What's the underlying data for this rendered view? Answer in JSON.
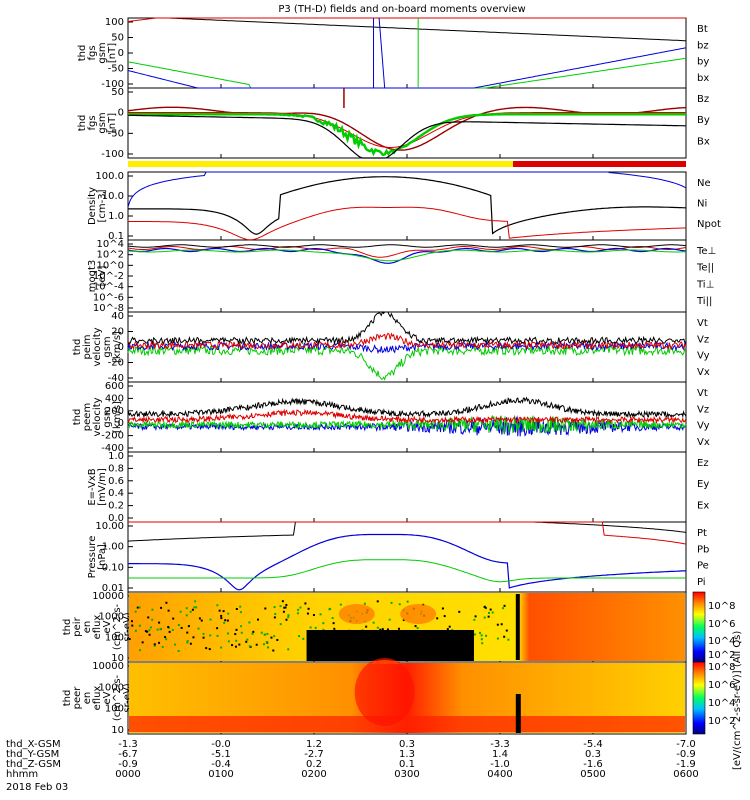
{
  "title": "P3 (TH-D) fields and on-board moments overview",
  "colors": {
    "black": "#000000",
    "red": "#dd0000",
    "green": "#00cc00",
    "blue": "#0000dd",
    "darkred": "#990000",
    "yellow": "#ffee00"
  },
  "colorbar": {
    "label": "[eV/(cm^2-s-sr-eV)] (All Qs)",
    "ticks_top": [
      "10^8",
      "10^6",
      "10^4",
      "10^2"
    ],
    "ticks_bottom": [
      "10^8",
      "10^6",
      "10^4",
      "10^2"
    ]
  },
  "footer": {
    "rows": [
      {
        "label": "thd_X-GSM",
        "values": [
          "-1.3",
          "-0.0",
          "1.2",
          "0.3",
          "-3.3",
          "-5.4",
          "-7.0"
        ]
      },
      {
        "label": "thd_Y-GSM",
        "values": [
          "-6.7",
          "-5.1",
          "-2.7",
          "1.3",
          "1.4",
          "0.3",
          "-0.9"
        ]
      },
      {
        "label": "thd_Z-GSM",
        "values": [
          "-0.9",
          "-0.4",
          "0.2",
          "0.1",
          "-1.0",
          "-1.6",
          "-1.9"
        ]
      },
      {
        "label": "hhmm",
        "values": [
          "0000",
          "0100",
          "0200",
          "0300",
          "0400",
          "0500",
          "0600"
        ]
      }
    ],
    "date": "2018 Feb 03"
  },
  "chart_data": [
    {
      "type": "line",
      "ylabel": "thd\nfgs\ngsm\n[nT]",
      "ylim": [
        -100,
        100
      ],
      "ticks": [
        "100",
        "50",
        "0",
        "-50",
        "-100"
      ],
      "legend": [
        {
          "name": "Bt",
          "color": "black"
        },
        {
          "name": "bz",
          "color": "red"
        },
        {
          "name": "by",
          "color": "green"
        },
        {
          "name": "bx",
          "color": "blue"
        }
      ]
    },
    {
      "type": "line",
      "ylabel": "thd\nfgs\ngsm\n[nT]",
      "ylim": [
        -130,
        70
      ],
      "ticks": [
        "50",
        "0",
        "-50",
        "-100"
      ],
      "legend": [
        {
          "name": "Bz",
          "color": "darkred"
        },
        {
          "name": "By",
          "color": "red"
        },
        {
          "name": "Bx",
          "color": "black"
        }
      ]
    },
    {
      "type": "line",
      "ylabel": "Density\n[cm-3]",
      "scale": "log",
      "ylim": [
        0.1,
        300
      ],
      "ticks": [
        "100.0",
        "10.0",
        "1.0",
        "0.1"
      ],
      "legend": [
        {
          "name": "Ne",
          "color": "red"
        },
        {
          "name": "Ni",
          "color": "black"
        },
        {
          "name": "Npot",
          "color": "blue"
        }
      ]
    },
    {
      "type": "line",
      "ylabel": "moqt3\n[eV]",
      "scale": "log",
      "ticks": [
        "10^4",
        "10^2",
        "10^0",
        "10^-2",
        "10^-4",
        "10^-6",
        "10^-8"
      ],
      "legend": [
        {
          "name": "Te⊥",
          "color": "red"
        },
        {
          "name": "Te||",
          "color": "black"
        },
        {
          "name": "Ti⊥",
          "color": "blue"
        },
        {
          "name": "Ti||",
          "color": "green"
        }
      ]
    },
    {
      "type": "line",
      "ylabel": "thd\npeim\nvelocity\ngsm\n[km/s]",
      "ylim": [
        -40,
        40
      ],
      "ticks": [
        "40",
        "20",
        "0",
        "-20",
        "-40"
      ],
      "legend": [
        {
          "name": "Vt",
          "color": "black"
        },
        {
          "name": "Vz",
          "color": "red"
        },
        {
          "name": "Vy",
          "color": "green"
        },
        {
          "name": "Vx",
          "color": "blue"
        }
      ]
    },
    {
      "type": "line",
      "ylabel": "thd\npeem\nvelocity\ngsm\n[km/s]",
      "ylim": [
        -400,
        600
      ],
      "ticks": [
        "600",
        "400",
        "200",
        "0",
        "-200",
        "-400"
      ],
      "legend": [
        {
          "name": "Vt",
          "color": "black"
        },
        {
          "name": "Vz",
          "color": "red"
        },
        {
          "name": "Vy",
          "color": "green"
        },
        {
          "name": "Vx",
          "color": "blue"
        }
      ]
    },
    {
      "type": "line",
      "ylabel": "E=-VxB\n[mV/m]",
      "ylim": [
        0,
        1
      ],
      "ticks": [
        "1.0",
        "0.8",
        "0.6",
        "0.4",
        "0.2",
        "0.0"
      ],
      "legend": [
        {
          "name": "Ez",
          "color": "red"
        },
        {
          "name": "Ey",
          "color": "green"
        },
        {
          "name": "Ex",
          "color": "blue"
        }
      ]
    },
    {
      "type": "line",
      "ylabel": "Pressure\n[nPa]",
      "scale": "log",
      "ylim": [
        0.01,
        30
      ],
      "ticks": [
        "10.00",
        "1.00",
        "0.10",
        "0.01"
      ],
      "legend": [
        {
          "name": "Pt",
          "color": "black"
        },
        {
          "name": "Pb",
          "color": "red"
        },
        {
          "name": "Pe",
          "color": "green"
        },
        {
          "name": "Pi",
          "color": "blue"
        }
      ]
    },
    {
      "type": "heatmap",
      "ylabel": "thd\npeir\nen\neflux\neV\n(cm^2-s-\nsr-eV)",
      "scale": "log",
      "ticks": [
        "10000",
        "1000",
        "100",
        "10"
      ]
    },
    {
      "type": "heatmap",
      "ylabel": "thd\npeer\nen\neflux\neV\n(cm^2-s-\nsr-eV)",
      "scale": "log",
      "ticks": [
        "10000",
        "1000",
        "100",
        "10"
      ]
    }
  ]
}
